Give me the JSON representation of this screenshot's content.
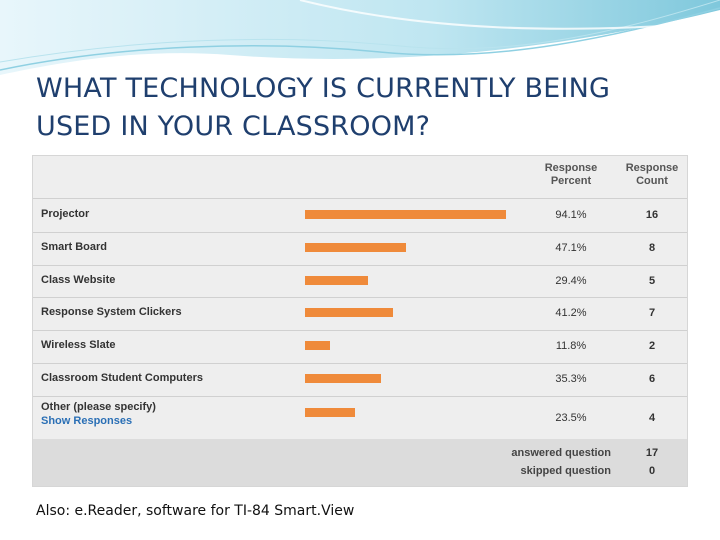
{
  "slide": {
    "title": "WHAT TECHNOLOGY IS CURRENTLY BEING USED IN YOUR CLASSROOM?",
    "note": "Also:   e.Reader,  software for TI-84 Smart.View",
    "accent_color": "#ef8a3a",
    "wave_color": "#7fc8dc"
  },
  "table": {
    "header_percent": "Response Percent",
    "header_count": "Response Count",
    "show_responses": "Show Responses",
    "answered_label": "answered question",
    "answered_value": "17",
    "skipped_label": "skipped question",
    "skipped_value": "0"
  },
  "chart_data": {
    "type": "bar",
    "categories": [
      "Projector",
      "Smart Board",
      "Class Website",
      "Response System Clickers",
      "Wireless Slate",
      "Classroom Student Computers",
      "Other (please specify)"
    ],
    "values": [
      94.1,
      47.1,
      29.4,
      41.2,
      11.8,
      35.3,
      23.5
    ],
    "percent_labels": [
      "94.1%",
      "47.1%",
      "29.4%",
      "41.2%",
      "11.8%",
      "35.3%",
      "23.5%"
    ],
    "counts": [
      "16",
      "8",
      "5",
      "7",
      "2",
      "6",
      "4"
    ],
    "xlim": [
      0,
      100
    ]
  }
}
